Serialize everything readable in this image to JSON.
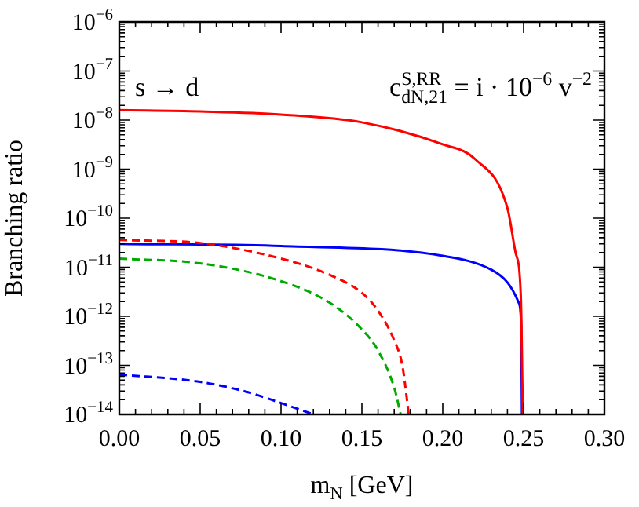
{
  "chart_data": {
    "type": "line",
    "xlabel": "m$_{N}$ [GeV]",
    "ylabel": "Branching ratio",
    "annotations": [
      "s → d",
      "c$^{S,RR}$$_{dN,21}$ = i · 10$^{−6}$ v$^{−2}$"
    ],
    "log": "y",
    "grid": false,
    "legend": false,
    "marker": "none",
    "xlim": [
      0,
      0.3
    ],
    "xticks": [
      {
        "value": 0,
        "label": "0.00"
      },
      {
        "value": 0.05,
        "label": "0.05"
      },
      {
        "value": 0.1,
        "label": "0.10"
      },
      {
        "value": 0.15,
        "label": "0.15"
      },
      {
        "value": 0.2,
        "label": "0.20"
      },
      {
        "value": 0.25,
        "label": "0.25"
      },
      {
        "value": 0.3,
        "label": "0.30"
      }
    ],
    "ylim": [
      1e-14,
      1e-06
    ],
    "yticks": [
      {
        "value": 1e-14,
        "label": "10$^{−14}$"
      },
      {
        "value": 1e-13,
        "label": "10$^{−13}$"
      },
      {
        "value": 1e-12,
        "label": "10$^{−12}$"
      },
      {
        "value": 1e-11,
        "label": "10$^{−11}$"
      },
      {
        "value": 1e-10,
        "label": "10$^{−10}$"
      },
      {
        "value": 1e-09,
        "label": "10$^{−9}$"
      },
      {
        "value": 1e-08,
        "label": "10$^{−8}$"
      },
      {
        "value": 1e-07,
        "label": "10$^{−7}$"
      },
      {
        "value": 1e-06,
        "label": "10$^{−6}$"
      }
    ],
    "series": [
      {
        "color": "#ff0000",
        "line_style": "solid",
        "x": [
          0,
          0.05,
          0.1,
          0.15,
          0.2,
          0.22,
          0.24,
          0.245,
          0.2483,
          0.2495
        ],
        "values": [
          1.6e-08,
          1.5e-08,
          1.3e-08,
          9e-09,
          3.2e-09,
          1.6e-09,
          1.6e-10,
          2e-11,
          2.5e-12,
          1e-14
        ]
      },
      {
        "color": "#ff0000",
        "line_style": "dashed",
        "x": [
          0,
          0.05,
          0.1,
          0.13,
          0.15,
          0.16,
          0.17,
          0.175,
          0.179
        ],
        "values": [
          3.6e-11,
          3.1e-11,
          1.5e-11,
          7e-12,
          3e-12,
          1.3e-12,
          3.2e-13,
          1e-13,
          1e-14
        ]
      },
      {
        "color": "#00aa00",
        "line_style": "dashed",
        "x": [
          0,
          0.05,
          0.1,
          0.13,
          0.15,
          0.16,
          0.17,
          0.174
        ],
        "values": [
          1.5e-11,
          1.2e-11,
          5.2e-12,
          1.9e-12,
          5.4e-13,
          2e-13,
          3.5e-14,
          1e-14
        ]
      },
      {
        "color": "#0000ff",
        "line_style": "solid",
        "x": [
          0,
          0.1,
          0.2,
          0.23,
          0.24,
          0.247,
          0.2485,
          0.249
        ],
        "values": [
          3e-11,
          2.7e-11,
          1.7e-11,
          8.9e-12,
          4.9e-12,
          1.9e-12,
          6.8e-13,
          1e-14
        ]
      },
      {
        "color": "#0000ff",
        "line_style": "dashed",
        "x": [
          0,
          0.05,
          0.08,
          0.1,
          0.12
        ],
        "values": [
          6.5e-14,
          4.6e-14,
          2.8e-14,
          1.7e-14,
          1e-14
        ]
      }
    ]
  }
}
